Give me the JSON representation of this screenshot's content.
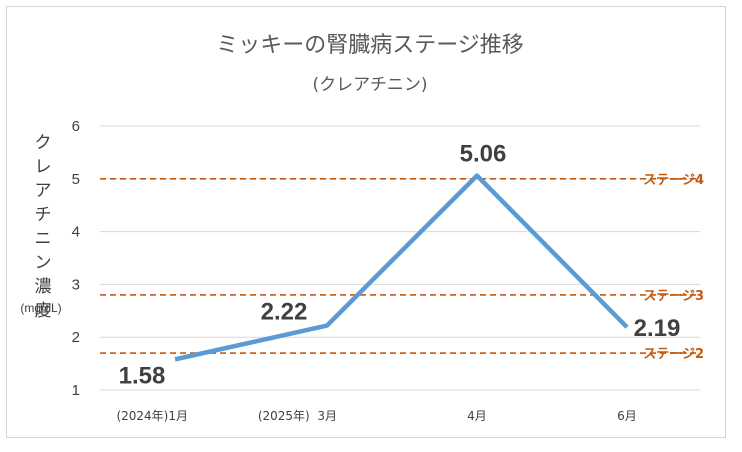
{
  "chart_data": {
    "type": "line",
    "title": "ミッキーの腎臓病ステージ推移",
    "subtitle": "(クレアチニン)",
    "ylabel": "クレアチニン濃度",
    "yunit": "(mg/dL)",
    "ylim": [
      1,
      6
    ],
    "yticks": [
      1,
      2,
      3,
      4,
      5,
      6
    ],
    "grid": true,
    "categories": [
      "(2024年)1月",
      "(2025年)  3月",
      "4月",
      "6月"
    ],
    "values": [
      1.58,
      2.22,
      5.06,
      2.19
    ],
    "data_labels": [
      "1.58",
      "2.22",
      "5.06",
      "2.19"
    ],
    "line_color": "#5b9bd5",
    "thresholds": [
      {
        "label": "ステージ4",
        "value": 5.0
      },
      {
        "label": "ステージ3",
        "value": 2.8
      },
      {
        "label": "ステージ2",
        "value": 1.7
      }
    ],
    "threshold_color": "#c55a11"
  }
}
